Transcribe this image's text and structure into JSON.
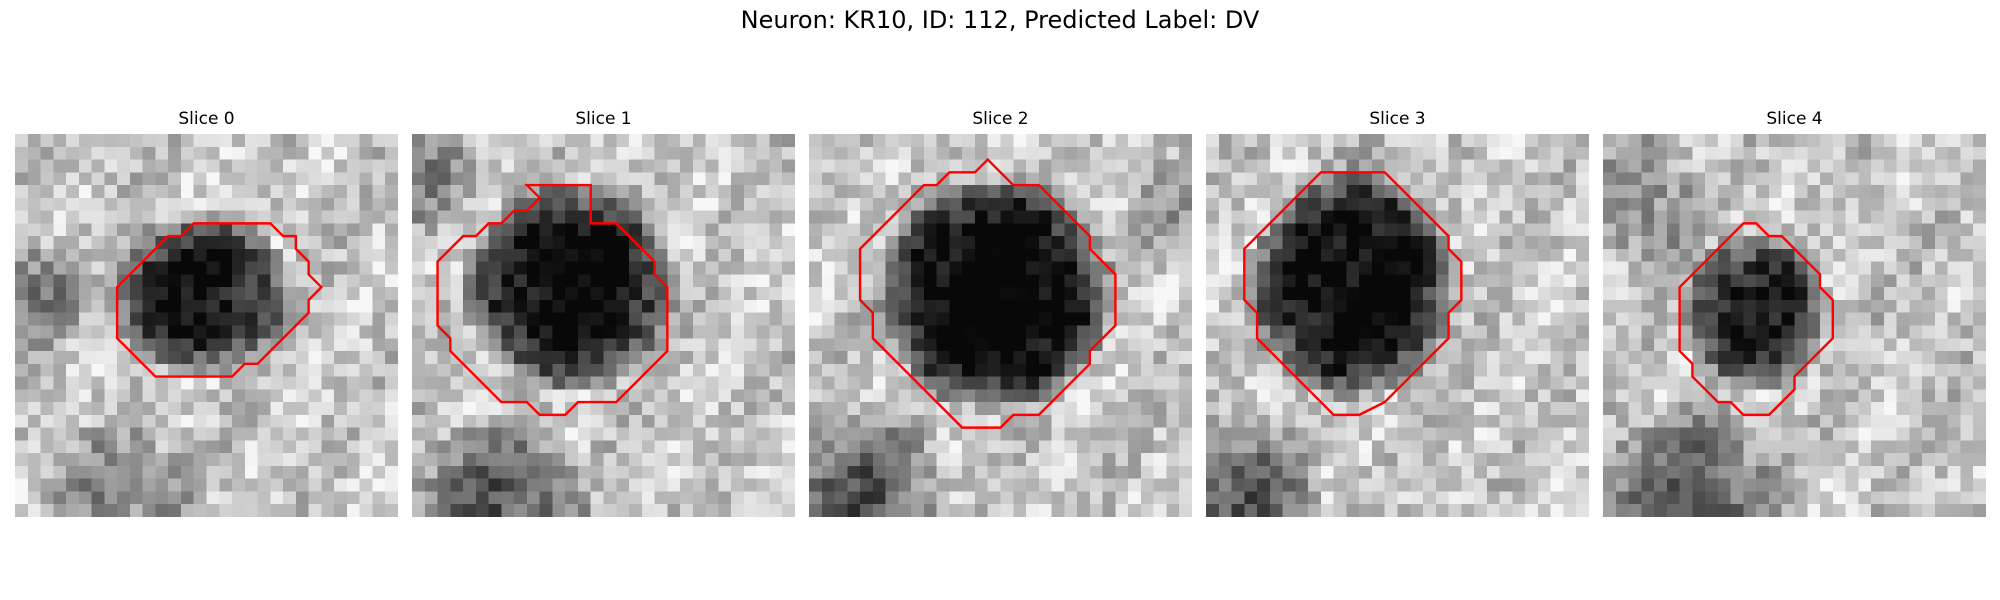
{
  "figure": {
    "title": "Neuron: KR10, ID: 112, Predicted Label: DV"
  },
  "panels": [
    {
      "title": "Slice 0",
      "contour": [
        [
          17,
          7
        ],
        [
          20,
          7
        ],
        [
          21,
          8
        ],
        [
          22,
          8
        ],
        [
          22,
          9
        ],
        [
          23,
          10
        ],
        [
          23,
          11
        ],
        [
          24,
          12
        ],
        [
          23,
          13
        ],
        [
          23,
          14
        ],
        [
          22,
          15
        ],
        [
          21,
          16
        ],
        [
          20,
          17
        ],
        [
          19,
          18
        ],
        [
          18,
          18
        ],
        [
          17,
          19
        ],
        [
          16,
          19
        ],
        [
          11,
          19
        ],
        [
          10,
          18
        ],
        [
          9,
          17
        ],
        [
          8,
          16
        ],
        [
          8,
          12
        ],
        [
          9,
          11
        ],
        [
          10,
          10
        ],
        [
          11,
          9
        ],
        [
          12,
          8
        ],
        [
          13,
          8
        ],
        [
          14,
          7
        ]
      ]
    },
    {
      "title": "Slice 1",
      "contour": [
        [
          14,
          7
        ],
        [
          16,
          7
        ],
        [
          17,
          8
        ],
        [
          18,
          9
        ],
        [
          19,
          10
        ],
        [
          19,
          11
        ],
        [
          20,
          12
        ],
        [
          20,
          17
        ],
        [
          19,
          18
        ],
        [
          18,
          19
        ],
        [
          17,
          20
        ],
        [
          16,
          21
        ],
        [
          13,
          21
        ],
        [
          12,
          22
        ],
        [
          10,
          22
        ],
        [
          9,
          21
        ],
        [
          7,
          21
        ],
        [
          6,
          20
        ],
        [
          5,
          19
        ],
        [
          4,
          18
        ],
        [
          3,
          17
        ],
        [
          3,
          16
        ],
        [
          2,
          15
        ],
        [
          2,
          10
        ],
        [
          3,
          9
        ],
        [
          4,
          8
        ],
        [
          5,
          8
        ],
        [
          6,
          7
        ],
        [
          7,
          7
        ],
        [
          8,
          6
        ],
        [
          9,
          6
        ],
        [
          10,
          5
        ],
        [
          9,
          4
        ],
        [
          10,
          4
        ],
        [
          14,
          4
        ]
      ]
    },
    {
      "title": "Slice 2",
      "contour": [
        [
          16,
          4
        ],
        [
          18,
          4
        ],
        [
          19,
          5
        ],
        [
          20,
          6
        ],
        [
          21,
          7
        ],
        [
          22,
          8
        ],
        [
          22,
          9
        ],
        [
          23,
          10
        ],
        [
          24,
          11
        ],
        [
          24,
          15
        ],
        [
          23,
          16
        ],
        [
          22,
          17
        ],
        [
          22,
          18
        ],
        [
          21,
          19
        ],
        [
          20,
          20
        ],
        [
          19,
          21
        ],
        [
          18,
          22
        ],
        [
          16,
          22
        ],
        [
          15,
          23
        ],
        [
          12,
          23
        ],
        [
          11,
          22
        ],
        [
          10,
          21
        ],
        [
          9,
          20
        ],
        [
          8,
          19
        ],
        [
          7,
          18
        ],
        [
          6,
          17
        ],
        [
          5,
          16
        ],
        [
          5,
          14
        ],
        [
          4,
          13
        ],
        [
          4,
          9
        ],
        [
          5,
          8
        ],
        [
          6,
          7
        ],
        [
          7,
          6
        ],
        [
          8,
          5
        ],
        [
          9,
          4
        ],
        [
          10,
          4
        ],
        [
          11,
          3
        ],
        [
          13,
          3
        ],
        [
          14,
          2
        ]
      ]
    },
    {
      "title": "Slice 3",
      "contour": [
        [
          13,
          3
        ],
        [
          14,
          3
        ],
        [
          15,
          4
        ],
        [
          16,
          5
        ],
        [
          17,
          6
        ],
        [
          18,
          7
        ],
        [
          19,
          8
        ],
        [
          19,
          9
        ],
        [
          20,
          10
        ],
        [
          20,
          13
        ],
        [
          19,
          14
        ],
        [
          19,
          16
        ],
        [
          18,
          17
        ],
        [
          17,
          18
        ],
        [
          16,
          19
        ],
        [
          15,
          20
        ],
        [
          14,
          21
        ],
        [
          12,
          22
        ],
        [
          10,
          22
        ],
        [
          9,
          21
        ],
        [
          8,
          20
        ],
        [
          7,
          19
        ],
        [
          6,
          18
        ],
        [
          5,
          17
        ],
        [
          4,
          16
        ],
        [
          4,
          14
        ],
        [
          3,
          13
        ],
        [
          3,
          9
        ],
        [
          4,
          8
        ],
        [
          5,
          7
        ],
        [
          6,
          6
        ],
        [
          7,
          5
        ],
        [
          8,
          4
        ],
        [
          9,
          3
        ],
        [
          10,
          3
        ]
      ]
    },
    {
      "title": "Slice 4",
      "contour": [
        [
          11,
          7
        ],
        [
          12,
          7
        ],
        [
          13,
          8
        ],
        [
          14,
          8
        ],
        [
          15,
          9
        ],
        [
          16,
          10
        ],
        [
          17,
          11
        ],
        [
          17,
          12
        ],
        [
          18,
          13
        ],
        [
          18,
          16
        ],
        [
          17,
          17
        ],
        [
          16,
          18
        ],
        [
          15,
          19
        ],
        [
          15,
          20
        ],
        [
          14,
          21
        ],
        [
          13,
          22
        ],
        [
          11,
          22
        ],
        [
          10,
          21
        ],
        [
          9,
          21
        ],
        [
          8,
          20
        ],
        [
          7,
          19
        ],
        [
          7,
          18
        ],
        [
          6,
          17
        ],
        [
          6,
          12
        ],
        [
          7,
          11
        ],
        [
          8,
          10
        ],
        [
          9,
          9
        ],
        [
          10,
          8
        ]
      ]
    }
  ]
}
